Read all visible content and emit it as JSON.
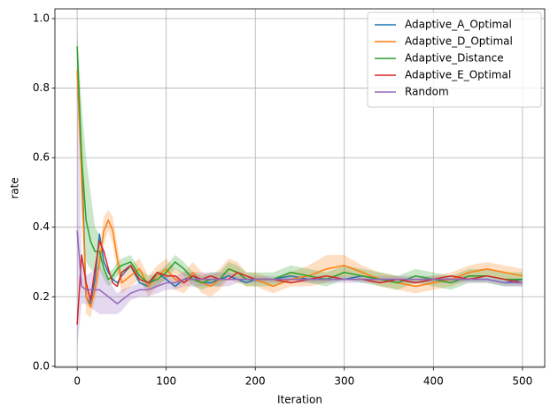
{
  "chart_data": {
    "type": "line",
    "xlabel": "Iteration",
    "ylabel": "rate",
    "xlim": [
      -25,
      525
    ],
    "ylim": [
      -0.003,
      1.028
    ],
    "xticks": [
      0,
      100,
      200,
      300,
      400,
      500
    ],
    "yticks": [
      {
        "value": 0,
        "label": "0.0"
      },
      {
        "value": 0.2,
        "label": "0.2"
      },
      {
        "value": 0.4,
        "label": "0.4"
      },
      {
        "value": 0.6,
        "label": "0.6"
      },
      {
        "value": 0.8,
        "label": "0.8"
      },
      {
        "value": 1,
        "label": "1.0"
      }
    ],
    "grid": true,
    "legend": "upper right",
    "x": [
      0,
      5,
      10,
      15,
      20,
      25,
      30,
      35,
      40,
      45,
      50,
      60,
      70,
      80,
      90,
      100,
      110,
      120,
      130,
      140,
      150,
      160,
      170,
      180,
      190,
      200,
      220,
      240,
      260,
      280,
      300,
      320,
      340,
      360,
      380,
      400,
      420,
      440,
      460,
      480,
      500
    ],
    "series": [
      {
        "name": "Adaptive_A_Optimal",
        "color": "#1f77b4",
        "values": [
          0.85,
          0.6,
          0.2,
          0.18,
          0.25,
          0.38,
          0.3,
          0.27,
          0.25,
          0.24,
          0.26,
          0.29,
          0.24,
          0.23,
          0.27,
          0.25,
          0.23,
          0.25,
          0.26,
          0.24,
          0.24,
          0.25,
          0.26,
          0.25,
          0.24,
          0.25,
          0.25,
          0.26,
          0.25,
          0.25,
          0.25,
          0.26,
          0.25,
          0.25,
          0.24,
          0.25,
          0.25,
          0.25,
          0.25,
          0.24,
          0.25
        ]
      },
      {
        "name": "Adaptive_D_Optimal",
        "color": "#ff7f0e",
        "values": [
          0.85,
          0.55,
          0.2,
          0.17,
          0.22,
          0.3,
          0.39,
          0.42,
          0.39,
          0.31,
          0.24,
          0.26,
          0.28,
          0.23,
          0.26,
          0.28,
          0.25,
          0.24,
          0.27,
          0.24,
          0.23,
          0.25,
          0.28,
          0.27,
          0.25,
          0.25,
          0.23,
          0.25,
          0.26,
          0.28,
          0.29,
          0.27,
          0.25,
          0.24,
          0.23,
          0.24,
          0.25,
          0.27,
          0.28,
          0.27,
          0.26
        ],
        "lower": [
          0.8,
          0.45,
          0.15,
          0.14,
          0.19,
          0.26,
          0.35,
          0.39,
          0.35,
          0.27,
          0.21,
          0.23,
          0.25,
          0.2,
          0.23,
          0.25,
          0.22,
          0.21,
          0.24,
          0.21,
          0.2,
          0.22,
          0.25,
          0.24,
          0.23,
          0.23,
          0.21,
          0.23,
          0.23,
          0.24,
          0.26,
          0.25,
          0.23,
          0.22,
          0.21,
          0.22,
          0.23,
          0.25,
          0.26,
          0.25,
          0.24
        ],
        "upper": [
          0.9,
          0.65,
          0.25,
          0.2,
          0.25,
          0.34,
          0.43,
          0.45,
          0.43,
          0.35,
          0.27,
          0.29,
          0.31,
          0.26,
          0.29,
          0.31,
          0.28,
          0.27,
          0.3,
          0.27,
          0.26,
          0.28,
          0.31,
          0.3,
          0.27,
          0.27,
          0.25,
          0.27,
          0.29,
          0.32,
          0.32,
          0.29,
          0.27,
          0.26,
          0.25,
          0.26,
          0.27,
          0.29,
          0.3,
          0.29,
          0.28
        ]
      },
      {
        "name": "Adaptive_Distance",
        "color": "#2ca02c",
        "values": [
          0.92,
          0.6,
          0.42,
          0.36,
          0.33,
          0.33,
          0.28,
          0.25,
          0.26,
          0.28,
          0.29,
          0.3,
          0.26,
          0.24,
          0.25,
          0.27,
          0.3,
          0.28,
          0.25,
          0.24,
          0.25,
          0.25,
          0.28,
          0.27,
          0.25,
          0.25,
          0.25,
          0.27,
          0.26,
          0.25,
          0.27,
          0.26,
          0.25,
          0.24,
          0.26,
          0.25,
          0.24,
          0.26,
          0.26,
          0.25,
          0.25
        ],
        "lower": [
          0.88,
          0.45,
          0.3,
          0.28,
          0.27,
          0.28,
          0.25,
          0.23,
          0.24,
          0.26,
          0.27,
          0.28,
          0.24,
          0.22,
          0.23,
          0.25,
          0.28,
          0.26,
          0.23,
          0.22,
          0.23,
          0.23,
          0.26,
          0.25,
          0.23,
          0.23,
          0.23,
          0.25,
          0.24,
          0.23,
          0.25,
          0.24,
          0.23,
          0.22,
          0.24,
          0.23,
          0.22,
          0.24,
          0.24,
          0.23,
          0.23
        ],
        "upper": [
          0.96,
          0.75,
          0.6,
          0.5,
          0.4,
          0.38,
          0.31,
          0.27,
          0.28,
          0.3,
          0.31,
          0.32,
          0.28,
          0.26,
          0.27,
          0.29,
          0.32,
          0.3,
          0.27,
          0.26,
          0.27,
          0.27,
          0.3,
          0.29,
          0.27,
          0.27,
          0.27,
          0.29,
          0.28,
          0.27,
          0.29,
          0.28,
          0.27,
          0.26,
          0.28,
          0.27,
          0.26,
          0.28,
          0.28,
          0.27,
          0.27
        ]
      },
      {
        "name": "Adaptive_E_Optimal",
        "color": "#d62728",
        "values": [
          0.12,
          0.32,
          0.24,
          0.19,
          0.28,
          0.36,
          0.33,
          0.28,
          0.24,
          0.23,
          0.27,
          0.29,
          0.25,
          0.24,
          0.27,
          0.26,
          0.26,
          0.24,
          0.26,
          0.25,
          0.26,
          0.25,
          0.25,
          0.27,
          0.26,
          0.25,
          0.25,
          0.24,
          0.25,
          0.26,
          0.25,
          0.25,
          0.24,
          0.25,
          0.24,
          0.25,
          0.26,
          0.25,
          0.26,
          0.25,
          0.24
        ]
      },
      {
        "name": "Random",
        "color": "#9467bd",
        "values": [
          0.39,
          0.23,
          0.22,
          0.22,
          0.22,
          0.22,
          0.21,
          0.2,
          0.19,
          0.18,
          0.19,
          0.21,
          0.22,
          0.22,
          0.23,
          0.24,
          0.24,
          0.25,
          0.25,
          0.25,
          0.25,
          0.25,
          0.25,
          0.25,
          0.25,
          0.25,
          0.25,
          0.25,
          0.25,
          0.25,
          0.25,
          0.25,
          0.25,
          0.25,
          0.25,
          0.25,
          0.25,
          0.25,
          0.25,
          0.24,
          0.24
        ],
        "lower": [
          0.05,
          0.18,
          0.18,
          0.17,
          0.16,
          0.15,
          0.15,
          0.15,
          0.15,
          0.15,
          0.16,
          0.19,
          0.2,
          0.2,
          0.21,
          0.22,
          0.22,
          0.23,
          0.23,
          0.23,
          0.23,
          0.23,
          0.23,
          0.24,
          0.24,
          0.24,
          0.24,
          0.24,
          0.24,
          0.24,
          0.24,
          0.24,
          0.24,
          0.24,
          0.24,
          0.24,
          0.24,
          0.24,
          0.24,
          0.23,
          0.23
        ],
        "upper": [
          0.95,
          0.3,
          0.26,
          0.27,
          0.28,
          0.29,
          0.27,
          0.25,
          0.23,
          0.21,
          0.22,
          0.23,
          0.24,
          0.24,
          0.25,
          0.26,
          0.26,
          0.27,
          0.27,
          0.27,
          0.27,
          0.27,
          0.27,
          0.26,
          0.26,
          0.26,
          0.26,
          0.26,
          0.26,
          0.26,
          0.26,
          0.26,
          0.26,
          0.26,
          0.26,
          0.26,
          0.26,
          0.26,
          0.26,
          0.25,
          0.25
        ]
      }
    ]
  }
}
